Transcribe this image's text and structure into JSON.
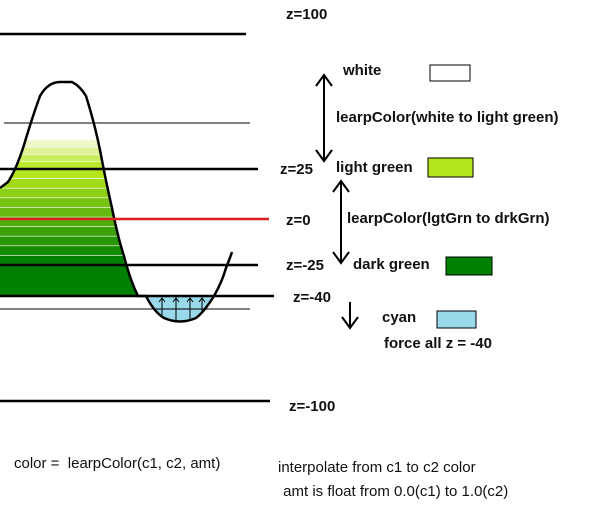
{
  "z_levels": {
    "z100": "z=100",
    "z25": "z=25",
    "z0": "z=0",
    "zm25": "z=-25",
    "zm40": "z=-40",
    "zm100": "z=-100"
  },
  "legend": {
    "white": "white",
    "lerp_white_light_green": "learpColor(white to light green)",
    "light_green": "light green",
    "lerp_light_dark_green": "learpColor(lgtGrn to drkGrn)",
    "dark_green": "dark green",
    "cyan": "cyan",
    "force_rule": "force all z = -40"
  },
  "notes": {
    "formula": "color =  learpColor(c1, c2, amt)",
    "interpolate": "interpolate from c1 to c2 color",
    "amt": " amt is float from 0.0(c1) to 1.0(c2)"
  },
  "colors": {
    "white": "#ffffff",
    "light_green": "#b5e61d",
    "dark_green": "#008000",
    "cyan": "#99d9ea",
    "zero_line": "#e02020",
    "outline": "#000000"
  }
}
